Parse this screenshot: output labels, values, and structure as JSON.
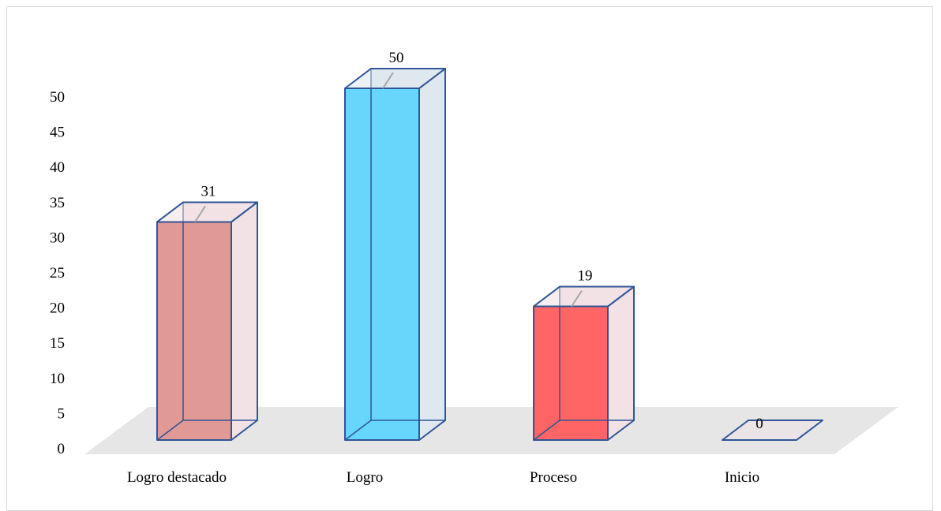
{
  "chart_data": {
    "type": "bar",
    "style": "3d-clustered-column",
    "categories": [
      "Logro destacado",
      "Logro",
      "Proceso",
      "Inicio"
    ],
    "values": [
      31,
      50,
      19,
      0
    ],
    "data_labels": [
      "31",
      "50",
      "19",
      "0"
    ],
    "y_ticks": [
      "0",
      "5",
      "10",
      "15",
      "20",
      "25",
      "30",
      "35",
      "40",
      "45",
      "50"
    ],
    "ylim": [
      0,
      50
    ],
    "grid": false,
    "legend": "none",
    "colors": {
      "bar_fronts": [
        "#e09995",
        "#66d7fb",
        "#ff6565",
        "#e09995"
      ],
      "bar_sides": [
        "#f2e2e6",
        "#dfe8ef",
        "#f2e2e6",
        "#f2e2e6"
      ],
      "bar_outline": "#2f5597",
      "floor": "#e6e6e6",
      "leader_line": "#a6a6a6"
    }
  }
}
